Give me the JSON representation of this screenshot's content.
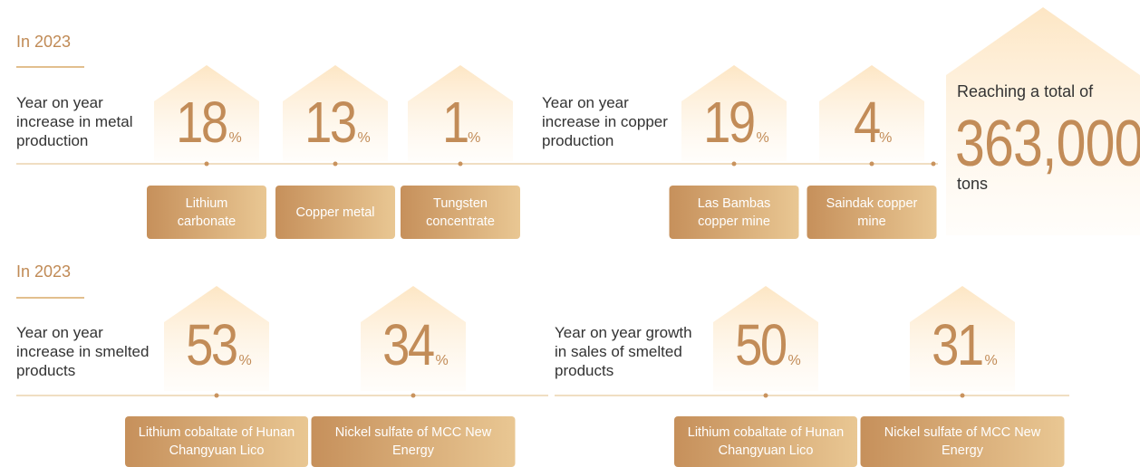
{
  "sections": [
    {
      "heading": "In 2023",
      "groups": [
        {
          "description": "Year on year increase in metal production",
          "items": [
            {
              "value": "18",
              "unit": "%",
              "label": "Lithium carbonate"
            },
            {
              "value": "13",
              "unit": "%",
              "label": "Copper metal"
            },
            {
              "value": "1",
              "unit": "%",
              "label": "Tungsten concentrate"
            }
          ]
        },
        {
          "description": "Year on year increase in copper production",
          "items": [
            {
              "value": "19",
              "unit": "%",
              "label": "Las Bambas copper mine"
            },
            {
              "value": "4",
              "unit": "%",
              "label": "Saindak copper mine"
            }
          ]
        }
      ],
      "total": {
        "intro": "Reaching a total of",
        "value": "363,000",
        "unit": "tons"
      }
    },
    {
      "heading": "In 2023",
      "groups": [
        {
          "description": "Year on year increase in smelted products",
          "items": [
            {
              "value": "53",
              "unit": "%",
              "label": "Lithium cobaltate of Hunan Changyuan Lico"
            },
            {
              "value": "34",
              "unit": "%",
              "label": "Nickel sulfate of MCC New Energy"
            }
          ]
        },
        {
          "description": "Year on year growth in sales of smelted products",
          "items": [
            {
              "value": "50",
              "unit": "%",
              "label": "Lithium cobaltate of Hunan Changyuan Lico"
            },
            {
              "value": "31",
              "unit": "%",
              "label": "Nickel sulfate of MCC New Energy"
            }
          ]
        }
      ]
    }
  ]
}
